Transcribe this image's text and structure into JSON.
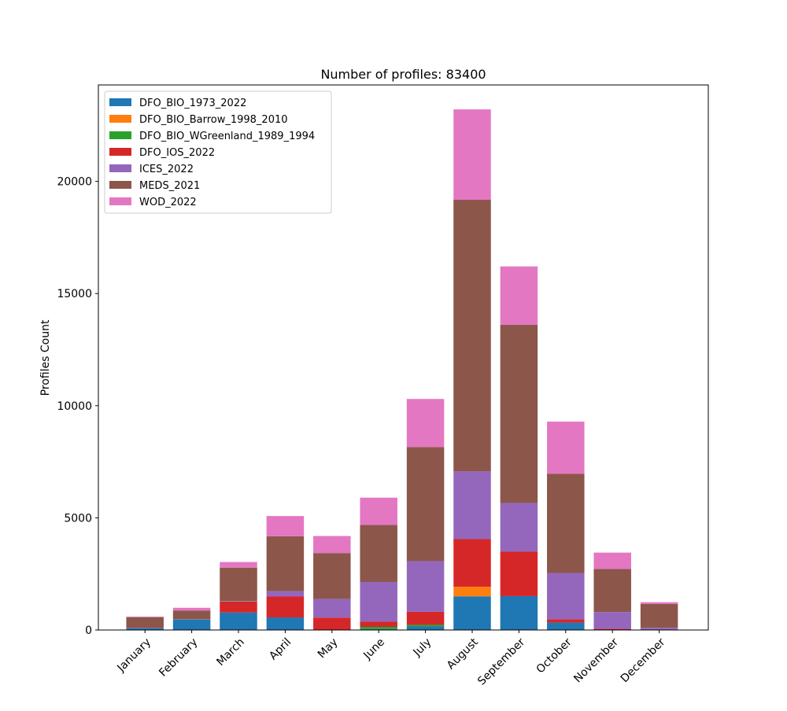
{
  "chart_data": {
    "type": "bar",
    "stacked": true,
    "title": "Number of profiles: 83400",
    "xlabel": "",
    "ylabel": "Profiles Count",
    "ylim": [
      0,
      24300
    ],
    "yticks": [
      0,
      5000,
      10000,
      15000,
      20000
    ],
    "ytick_labels": [
      "0",
      "5000",
      "10000",
      "15000",
      "20000"
    ],
    "grid": false,
    "legend_position": "top-left",
    "categories": [
      "January",
      "February",
      "March",
      "April",
      "May",
      "June",
      "July",
      "August",
      "September",
      "October",
      "November",
      "December"
    ],
    "series": [
      {
        "name": "DFO_BIO_1973_2022",
        "color": "#1f77b4",
        "values": [
          70,
          470,
          780,
          560,
          0,
          40,
          160,
          1500,
          1510,
          330,
          10,
          10
        ]
      },
      {
        "name": "DFO_BIO_Barrow_1998_2010",
        "color": "#ff7f0e",
        "values": [
          0,
          0,
          0,
          0,
          0,
          0,
          0,
          430,
          0,
          0,
          0,
          0
        ]
      },
      {
        "name": "DFO_BIO_WGreenland_1989_1994",
        "color": "#2ca02c",
        "values": [
          0,
          0,
          0,
          0,
          0,
          100,
          70,
          0,
          0,
          0,
          0,
          0
        ]
      },
      {
        "name": "DFO_IOS_2022",
        "color": "#d62728",
        "values": [
          0,
          0,
          490,
          930,
          550,
          230,
          580,
          2120,
          1980,
          150,
          40,
          0
        ]
      },
      {
        "name": "ICES_2022",
        "color": "#9467bd",
        "values": [
          20,
          10,
          20,
          240,
          830,
          1770,
          2260,
          3020,
          2170,
          2060,
          750,
          90
        ]
      },
      {
        "name": "MEDS_2021",
        "color": "#8c564b",
        "values": [
          480,
          380,
          1490,
          2450,
          2050,
          2540,
          5090,
          12110,
          7950,
          4420,
          1920,
          1060
        ]
      },
      {
        "name": "WOD_2022",
        "color": "#e377c2",
        "values": [
          30,
          130,
          250,
          900,
          760,
          1220,
          2140,
          4030,
          2600,
          2330,
          730,
          80
        ]
      }
    ]
  }
}
